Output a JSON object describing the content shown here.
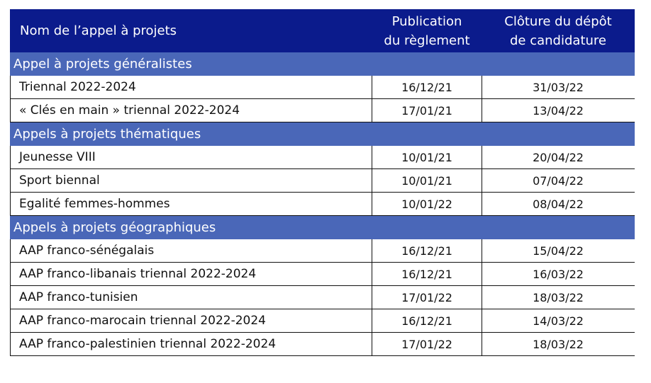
{
  "header": {
    "name": "Nom de l’appel à projets",
    "publication_line1": "Publication",
    "publication_line2": "du règlement",
    "closing_line1": "Clôture du dépôt",
    "closing_line2": "de candidature"
  },
  "sections": [
    {
      "title": "Appel à projets généralistes",
      "rows": [
        {
          "name": "Triennal 2022-2024",
          "publication": "16/12/21",
          "closing": "31/03/22"
        },
        {
          "name": "« Clés en main  » triennal 2022-2024",
          "publication": "17/01/21",
          "closing": "13/04/22"
        }
      ]
    },
    {
      "title": "Appels à projets thématiques",
      "rows": [
        {
          "name": "Jeunesse VIII",
          "publication": "10/01/21",
          "closing": "20/04/22"
        },
        {
          "name": "Sport biennal",
          "publication": "10/01/21",
          "closing": "07/04/22"
        },
        {
          "name": "Egalité femmes-hommes",
          "publication": "10/01/22",
          "closing": "08/04/22"
        }
      ]
    },
    {
      "title": "Appels à projets géographiques",
      "rows": [
        {
          "name": "AAP franco-sénégalais",
          "publication": "16/12/21",
          "closing": "15/04/22"
        },
        {
          "name": "AAP franco-libanais triennal 2022-2024",
          "publication": "16/12/21",
          "closing": "16/03/22"
        },
        {
          "name": "AAP franco-tunisien",
          "publication": "17/01/22",
          "closing": "18/03/22"
        },
        {
          "name": "AAP franco-marocain triennal 2022-2024",
          "publication": "16/12/21",
          "closing": "14/03/22"
        },
        {
          "name": "AAP franco-palestinien triennal 2022-2024",
          "publication": "17/01/22",
          "closing": "18/03/22"
        }
      ]
    }
  ]
}
